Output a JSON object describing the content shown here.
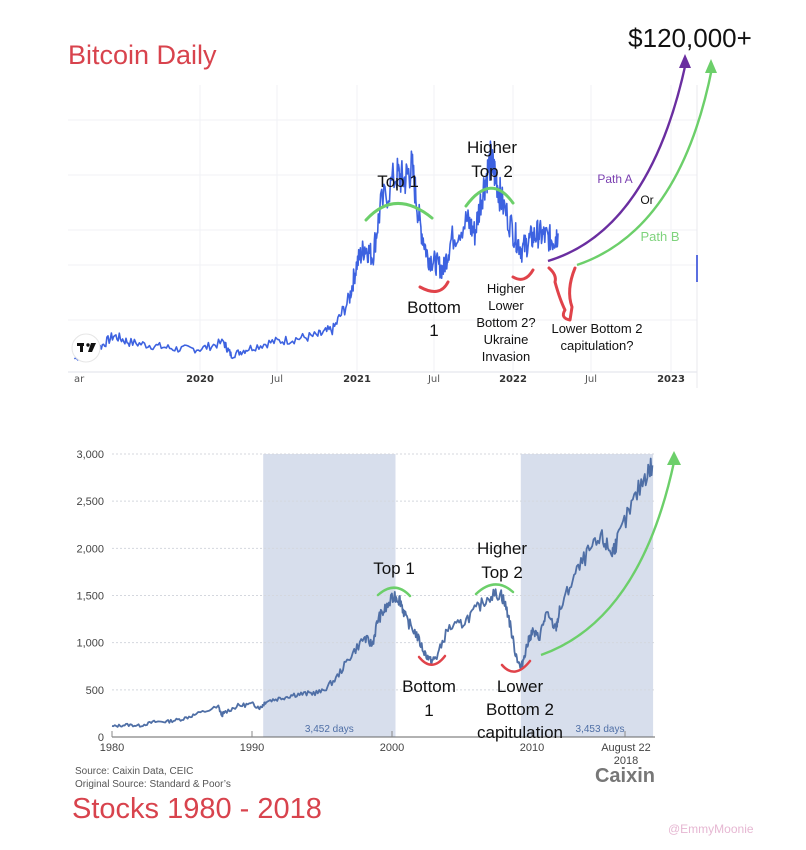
{
  "watermark": "@EmmyMoonie",
  "colors": {
    "title_red": "#d8434d",
    "btc_line": "#3d62e0",
    "stock_line": "#4f6fa6",
    "shade": "#d7deec",
    "green_annot": "#6ccf6a",
    "red_annot": "#e0434a",
    "purple_annot": "#6a2ea0"
  },
  "chart_data": [
    {
      "type": "line",
      "title": "Bitcoin Daily",
      "xlabel": "",
      "ylabel": "",
      "grid": true,
      "logo": "tradingview-logo",
      "x_ticks": [
        "ar",
        "2020",
        "Jul",
        "2021",
        "Jul",
        "2022",
        "Jul",
        "2023"
      ],
      "x_range": [
        "2019-03",
        "2023-03"
      ],
      "series": [
        {
          "name": "BTC price (approx. relative)",
          "x": [
            2019.2,
            2019.35,
            2019.45,
            2019.55,
            2019.7,
            2019.85,
            2020.0,
            2020.15,
            2020.2,
            2020.3,
            2020.45,
            2020.6,
            2020.75,
            2020.85,
            2020.95,
            2021.0,
            2021.05,
            2021.1,
            2021.15,
            2021.25,
            2021.3,
            2021.35,
            2021.4,
            2021.45,
            2021.5,
            2021.55,
            2021.6,
            2021.7,
            2021.75,
            2021.8,
            2021.85,
            2021.88,
            2021.92,
            2022.0,
            2022.05,
            2022.1,
            2022.15,
            2022.2,
            2022.25,
            2022.28
          ],
          "values": [
            4,
            7,
            11,
            9,
            8,
            7,
            7,
            9,
            5,
            7,
            9,
            10,
            11,
            13,
            22,
            33,
            38,
            35,
            50,
            60,
            58,
            62,
            45,
            35,
            33,
            31,
            40,
            46,
            42,
            55,
            64,
            60,
            52,
            42,
            37,
            40,
            42,
            41,
            40,
            42
          ]
        }
      ],
      "annotations": [
        {
          "id": "top1",
          "text": "Top 1",
          "color": "green"
        },
        {
          "id": "top2",
          "text": "Higher Top 2",
          "color": "green"
        },
        {
          "id": "bottom1",
          "text": "Bottom 1",
          "color": "red"
        },
        {
          "id": "bottom2",
          "text": "Higher Lower Bottom 2? Ukraine Invasion",
          "color": "red"
        },
        {
          "id": "lower_bottom2",
          "text": "Lower Bottom 2 capitulation?",
          "color": "red"
        },
        {
          "id": "path_a",
          "text": "Path A",
          "color": "purple"
        },
        {
          "id": "or",
          "text": "Or"
        },
        {
          "id": "path_b",
          "text": "Path B",
          "color": "green"
        },
        {
          "id": "target",
          "text": "$120,000+"
        }
      ]
    },
    {
      "type": "line",
      "title": "Stocks 1980 - 2018",
      "xlabel": "",
      "ylabel": "",
      "grid": true,
      "ylim": [
        0,
        3000
      ],
      "y_ticks": [
        "0",
        "500",
        "1,000",
        "1,500",
        "2,000",
        "2,500",
        "3,000"
      ],
      "x_ticks": [
        "1980",
        "1990",
        "2000",
        "2010",
        "August 22 2018"
      ],
      "shaded_regions": [
        {
          "from": 1990.8,
          "to": 2000.25,
          "label": "3,452 days"
        },
        {
          "from": 2009.2,
          "to": 2018.65,
          "label": "3,453 days"
        }
      ],
      "series": [
        {
          "name": "S&P 500",
          "x": [
            1980,
            1981,
            1982,
            1983,
            1984,
            1985,
            1986,
            1987.6,
            1987.85,
            1988,
            1989,
            1990,
            1990.6,
            1991,
            1992,
            1993,
            1994,
            1995,
            1996,
            1997,
            1998,
            1998.6,
            1999,
            1999.5,
            2000.2,
            2000.6,
            2001,
            2001.7,
            2002.3,
            2002.8,
            2003.2,
            2004,
            2005,
            2006,
            2007,
            2007.8,
            2008.3,
            2008.8,
            2009.2,
            2009.6,
            2010,
            2010.5,
            2011,
            2011.7,
            2012,
            2013,
            2014,
            2015,
            2015.7,
            2016,
            2017,
            2018,
            2018.6
          ],
          "values": [
            110,
            130,
            120,
            160,
            165,
            190,
            240,
            320,
            230,
            260,
            330,
            350,
            310,
            380,
            410,
            450,
            460,
            480,
            620,
            850,
            1050,
            980,
            1250,
            1350,
            1500,
            1450,
            1250,
            1100,
            900,
            800,
            850,
            1150,
            1200,
            1350,
            1500,
            1520,
            1300,
            900,
            720,
            950,
            1120,
            1050,
            1300,
            1150,
            1350,
            1700,
            1950,
            2100,
            1950,
            2050,
            2400,
            2750,
            2880
          ]
        }
      ],
      "annotations": [
        {
          "id": "top1",
          "text": "Top 1",
          "color": "green"
        },
        {
          "id": "top2",
          "text": "Higher Top 2",
          "color": "green"
        },
        {
          "id": "bottom1",
          "text": "Bottom 1",
          "color": "red"
        },
        {
          "id": "bottom2",
          "text": "Lower Bottom 2 capitulation",
          "color": "red"
        }
      ],
      "source_lines": [
        "Source: Caixin Data, CEIC",
        "Original Source: Standard & Poor’s"
      ],
      "brand": "Caixin"
    }
  ]
}
